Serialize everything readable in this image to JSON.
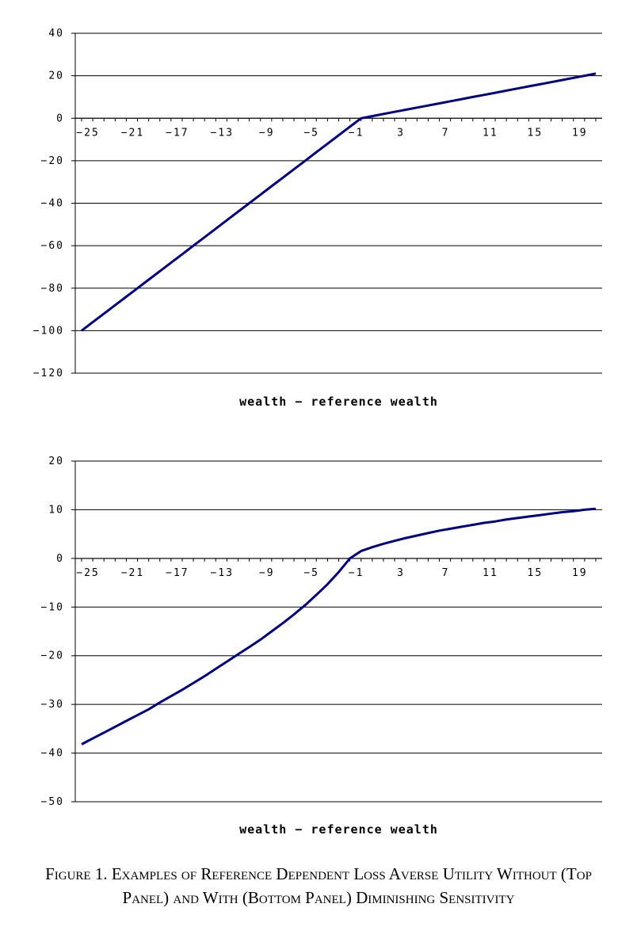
{
  "caption": "Figure 1. Examples of Reference Dependent Loss Averse Utility Without (Top Panel) and With (Bottom Panel) Diminishing Sensitivity",
  "chart_data": [
    {
      "type": "line",
      "title": "",
      "xlabel": "wealth − reference wealth",
      "ylabel": "",
      "x_tick_labels": [
        "−25",
        "−21",
        "−17",
        "−13",
        "−9",
        "−5",
        "−1",
        "3",
        "7",
        "11",
        "15",
        "19"
      ],
      "y_tick_labels": [
        "40",
        "20",
        "0",
        "−20",
        "−40",
        "−60",
        "−80",
        "−100",
        "−120"
      ],
      "ylim": [
        -120,
        40
      ],
      "y_ticks": [
        40,
        20,
        0,
        -20,
        -40,
        -60,
        -80,
        -100,
        -120
      ],
      "xlim": [
        -25,
        21
      ],
      "grid": "horizontal",
      "legend": "none",
      "color": "#000080",
      "series": [
        {
          "x": [
            -25,
            -24,
            -23,
            -22,
            -21,
            -20,
            -19,
            -18,
            -17,
            -16,
            -15,
            -14,
            -13,
            -12,
            -11,
            -10,
            -9,
            -8,
            -7,
            -6,
            -5,
            -4,
            -3,
            -2,
            -1,
            0,
            1,
            2,
            3,
            4,
            5,
            6,
            7,
            8,
            9,
            10,
            11,
            12,
            13,
            14,
            15,
            16,
            17,
            18,
            19,
            20,
            21
          ],
          "values": [
            -100,
            -96,
            -92,
            -88,
            -84,
            -80,
            -76,
            -72,
            -68,
            -64,
            -60,
            -56,
            -52,
            -48,
            -44,
            -40,
            -36,
            -32,
            -28,
            -24,
            -20,
            -16,
            -12,
            -8,
            -4,
            0,
            1,
            2,
            3,
            4,
            5,
            6,
            7,
            8,
            9,
            10,
            11,
            12,
            13,
            14,
            15,
            16,
            17,
            18,
            19,
            20,
            21
          ]
        }
      ]
    },
    {
      "type": "line",
      "title": "",
      "xlabel": "wealth − reference wealth",
      "ylabel": "",
      "x_tick_labels": [
        "−25",
        "−21",
        "−17",
        "−13",
        "−9",
        "−5",
        "−1",
        "3",
        "7",
        "11",
        "15",
        "19"
      ],
      "y_tick_labels": [
        "20",
        "10",
        "0",
        "−10",
        "−20",
        "−30",
        "−40",
        "−50"
      ],
      "ylim": [
        -50,
        20
      ],
      "y_ticks": [
        20,
        10,
        0,
        -10,
        -20,
        -30,
        -40,
        -50
      ],
      "xlim": [
        -25,
        21
      ],
      "grid": "horizontal",
      "legend": "none",
      "color": "#000080",
      "series": [
        {
          "x": [
            -25,
            -24,
            -23,
            -22,
            -21,
            -20,
            -19,
            -18,
            -17,
            -16,
            -15,
            -14,
            -13,
            -12,
            -11,
            -10,
            -9,
            -8,
            -7,
            -6,
            -5,
            -4,
            -3,
            -2,
            -1,
            0,
            1,
            2,
            3,
            4,
            5,
            6,
            7,
            8,
            9,
            10,
            11,
            12,
            13,
            14,
            15,
            16,
            17,
            18,
            19,
            20,
            21
          ],
          "values": [
            -38.2,
            -37,
            -35.8,
            -34.6,
            -33.4,
            -32.2,
            -31,
            -29.6,
            -28.3,
            -27,
            -25.6,
            -24.2,
            -22.7,
            -21.2,
            -19.7,
            -18.2,
            -16.7,
            -15,
            -13.3,
            -11.5,
            -9.6,
            -7.5,
            -5.3,
            -2.8,
            0,
            1.5,
            2.3,
            3.0,
            3.6,
            4.2,
            4.7,
            5.2,
            5.7,
            6.1,
            6.5,
            6.9,
            7.3,
            7.6,
            8.0,
            8.3,
            8.6,
            8.9,
            9.2,
            9.5,
            9.7,
            10.0,
            10.2
          ]
        }
      ]
    }
  ],
  "panels_layout_note": ""
}
